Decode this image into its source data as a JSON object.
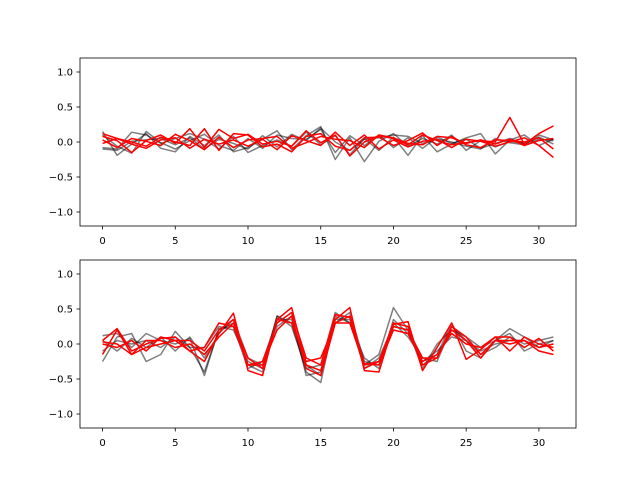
{
  "chart_data": [
    {
      "type": "line",
      "xlim": [
        -1.55,
        32.55
      ],
      "ylim": [
        -1.2,
        1.2
      ],
      "xticks": [
        0,
        5,
        10,
        15,
        20,
        25,
        30
      ],
      "yticks": [
        -1.0,
        -0.5,
        0.0,
        0.5,
        1.0
      ],
      "ytick_labels": [
        "−1.0",
        "−0.5",
        "0.0",
        "0.5",
        "1.0"
      ],
      "x": [
        0,
        1,
        2,
        3,
        4,
        5,
        6,
        7,
        8,
        9,
        10,
        11,
        12,
        13,
        14,
        15,
        16,
        17,
        18,
        19,
        20,
        21,
        22,
        23,
        24,
        25,
        26,
        27,
        28,
        29,
        30,
        31
      ],
      "grid": false,
      "series": [
        {
          "color": "#000000",
          "values": [
            0.15,
            -0.19,
            -0.03,
            0.12,
            -0.09,
            -0.14,
            0.08,
            -0.05,
            0.1,
            -0.14,
            -0.08,
            0.04,
            0.16,
            -0.11,
            0.09,
            0.22,
            -0.25,
            0.06,
            -0.28,
            0.01,
            0.12,
            -0.06,
            0.05,
            -0.03,
            0.1,
            -0.12,
            0.02,
            -0.07,
            0.01,
            -0.02,
            0.07,
            -0.03
          ]
        },
        {
          "color": "#000000",
          "values": [
            -0.08,
            -0.1,
            0.14,
            0.1,
            -0.02,
            0.05,
            0.12,
            0.04,
            -0.1,
            0.08,
            -0.15,
            -0.05,
            0.03,
            -0.06,
            0.14,
            -0.04,
            0.09,
            -0.18,
            0.05,
            -0.12,
            0.07,
            -0.19,
            0.09,
            -0.14,
            -0.03,
            0.06,
            0.12,
            -0.17,
            0.03,
            0.1,
            -0.05,
            0.04
          ]
        },
        {
          "color": "#000000",
          "values": [
            0.1,
            -0.06,
            -0.16,
            0.15,
            -0.01,
            -0.1,
            0.02,
            0.11,
            -0.05,
            -0.12,
            0.05,
            -0.09,
            0.1,
            0.05,
            0.04,
            0.18,
            -0.15,
            0.09,
            -0.05,
            0.1,
            -0.08,
            0.06,
            -0.09,
            0.07,
            -0.02,
            0.04,
            -0.09,
            -0.02,
            0.05,
            -0.03,
            0.04,
            0.02
          ]
        },
        {
          "color": "#000000",
          "values": [
            -0.1,
            -0.12,
            0.01,
            0.03,
            0.05,
            -0.04,
            0.06,
            -0.1,
            0.04,
            -0.02,
            -0.1,
            0.09,
            -0.07,
            0.11,
            0.02,
            0.2,
            0.0,
            -0.12,
            0.04,
            0.06,
            0.1,
            0.08,
            -0.02,
            0.04,
            0.0,
            -0.06,
            -0.1,
            0.05,
            -0.01,
            -0.04,
            0.1,
            0.03
          ]
        },
        {
          "color": "#ff0000",
          "values": [
            0.08,
            0.02,
            -0.15,
            0.02,
            0.1,
            -0.02,
            0.19,
            -0.08,
            0.18,
            0.05,
            0.11,
            -0.03,
            0.01,
            -0.06,
            0.16,
            -0.01,
            0.1,
            -0.2,
            0.0,
            0.09,
            0.05,
            -0.04,
            0.1,
            0.02,
            -0.04,
            -0.01,
            0.02,
            0.0,
            0.35,
            -0.03,
            0.12,
            0.23
          ]
        },
        {
          "color": "#ff0000",
          "values": [
            -0.02,
            0.05,
            0.0,
            -0.06,
            0.07,
            0.0,
            -0.05,
            0.19,
            -0.12,
            0.12,
            0.1,
            -0.07,
            -0.03,
            -0.14,
            0.08,
            0.12,
            -0.06,
            -0.12,
            0.06,
            0.07,
            -0.05,
            0.02,
            0.13,
            -0.05,
            0.08,
            -0.04,
            -0.08,
            0.03,
            0.02,
            0.0,
            0.06,
            -0.1
          ]
        },
        {
          "color": "#ff0000",
          "values": [
            0.12,
            0.05,
            -0.03,
            -0.09,
            0.03,
            0.06,
            -0.09,
            0.04,
            -0.03,
            0.03,
            -0.06,
            0.04,
            -0.11,
            0.09,
            0.02,
            -0.05,
            0.14,
            -0.05,
            0.1,
            -0.1,
            0.03,
            -0.07,
            0.01,
            0.04,
            -0.08,
            0.04,
            0.01,
            -0.06,
            0.0,
            0.06,
            -0.05,
            -0.22
          ]
        },
        {
          "color": "#ff0000",
          "values": [
            0.03,
            -0.08,
            0.05,
            0.01,
            -0.05,
            0.11,
            0.02,
            -0.11,
            0.07,
            -0.08,
            0.03,
            0.05,
            0.08,
            -0.09,
            -0.01,
            0.08,
            0.04,
            0.02,
            -0.08,
            0.1,
            0.06,
            -0.02,
            -0.04,
            0.08,
            0.06,
            -0.02,
            0.03,
            -0.03,
            0.04,
            -0.05,
            0.02,
            0.05
          ]
        }
      ]
    },
    {
      "type": "line",
      "xlim": [
        -1.55,
        32.55
      ],
      "ylim": [
        -1.2,
        1.2
      ],
      "xticks": [
        0,
        5,
        10,
        15,
        20,
        25,
        30
      ],
      "yticks": [
        -1.0,
        -0.5,
        0.0,
        0.5,
        1.0
      ],
      "ytick_labels": [
        "−1.0",
        "−0.5",
        "0.0",
        "0.5",
        "1.0"
      ],
      "x": [
        0,
        1,
        2,
        3,
        4,
        5,
        6,
        7,
        8,
        9,
        10,
        11,
        12,
        13,
        14,
        15,
        16,
        17,
        18,
        19,
        20,
        21,
        22,
        23,
        24,
        25,
        26,
        27,
        28,
        29,
        30,
        31
      ],
      "grid": false,
      "series": [
        {
          "color": "#000000",
          "values": [
            -0.25,
            0.1,
            0.15,
            -0.25,
            -0.15,
            0.18,
            -0.05,
            -0.4,
            0.2,
            0.3,
            -0.3,
            -0.4,
            0.4,
            0.3,
            -0.4,
            -0.55,
            0.4,
            0.3,
            -0.3,
            -0.15,
            0.52,
            0.2,
            -0.3,
            -0.15,
            0.3,
            -0.1,
            -0.2,
            0.05,
            0.22,
            0.1,
            -0.05,
            0.05
          ]
        },
        {
          "color": "#000000",
          "values": [
            0.12,
            0.15,
            -0.05,
            0.15,
            0.05,
            0.0,
            0.08,
            -0.45,
            0.22,
            0.25,
            -0.35,
            -0.25,
            0.35,
            0.35,
            -0.3,
            -0.45,
            0.3,
            0.45,
            -0.25,
            -0.3,
            0.3,
            0.1,
            -0.2,
            -0.25,
            0.25,
            0.05,
            -0.15,
            -0.05,
            0.1,
            0.0,
            0.05,
            0.1
          ]
        },
        {
          "color": "#000000",
          "values": [
            0.05,
            -0.1,
            0.08,
            -0.05,
            0.1,
            -0.1,
            0.1,
            -0.2,
            0.15,
            0.35,
            -0.2,
            -0.3,
            0.25,
            0.4,
            -0.45,
            -0.4,
            0.35,
            0.35,
            -0.35,
            -0.2,
            0.25,
            0.2,
            -0.35,
            0.0,
            0.2,
            0.1,
            -0.05,
            0.05,
            0.15,
            -0.1,
            0.0,
            0.05
          ]
        },
        {
          "color": "#000000",
          "values": [
            -0.1,
            0.05,
            0.0,
            0.05,
            -0.05,
            0.1,
            -0.05,
            -0.05,
            0.25,
            0.2,
            -0.25,
            -0.35,
            0.4,
            0.25,
            -0.35,
            -0.3,
            0.45,
            0.3,
            -0.2,
            -0.35,
            0.35,
            0.15,
            -0.25,
            -0.1,
            0.1,
            0.05,
            -0.1,
            0.0,
            0.05,
            0.05,
            -0.05,
            0.0
          ]
        },
        {
          "color": "#ff0000",
          "values": [
            0.05,
            0.22,
            -0.1,
            0.0,
            0.08,
            0.1,
            -0.1,
            -0.25,
            0.15,
            0.44,
            -0.38,
            -0.45,
            0.35,
            0.52,
            -0.3,
            -0.38,
            0.35,
            0.52,
            -0.38,
            -0.4,
            0.28,
            0.32,
            -0.38,
            -0.05,
            0.3,
            -0.22,
            -0.08,
            0.1,
            0.1,
            -0.05,
            0.08,
            -0.1
          ]
        },
        {
          "color": "#ff0000",
          "values": [
            -0.15,
            0.2,
            -0.15,
            -0.05,
            0.0,
            0.05,
            0.05,
            -0.1,
            0.2,
            0.35,
            -0.3,
            -0.25,
            0.3,
            0.45,
            -0.2,
            -0.3,
            0.42,
            0.38,
            -0.35,
            -0.25,
            0.3,
            0.25,
            -0.3,
            -0.2,
            0.25,
            0.1,
            -0.15,
            0.05,
            0.0,
            0.05,
            -0.05,
            0.0
          ]
        },
        {
          "color": "#ff0000",
          "values": [
            0.0,
            -0.05,
            0.05,
            -0.1,
            0.1,
            0.05,
            -0.1,
            -0.05,
            0.3,
            0.25,
            -0.3,
            -0.3,
            0.2,
            0.4,
            -0.35,
            -0.45,
            0.3,
            0.4,
            -0.28,
            -0.3,
            0.2,
            0.15,
            -0.25,
            -0.15,
            0.15,
            0.0,
            -0.05,
            0.1,
            -0.1,
            0.1,
            0.0,
            -0.05
          ]
        },
        {
          "color": "#ff0000",
          "values": [
            0.03,
            0.0,
            -0.15,
            0.05,
            0.05,
            -0.05,
            0.0,
            -0.15,
            0.1,
            0.3,
            -0.2,
            -0.35,
            0.35,
            0.3,
            -0.25,
            -0.2,
            0.3,
            0.3,
            -0.3,
            -0.25,
            0.25,
            0.2,
            -0.2,
            -0.2,
            0.2,
            0.05,
            -0.2,
            0.05,
            0.05,
            0.05,
            -0.1,
            -0.15
          ]
        }
      ]
    }
  ]
}
